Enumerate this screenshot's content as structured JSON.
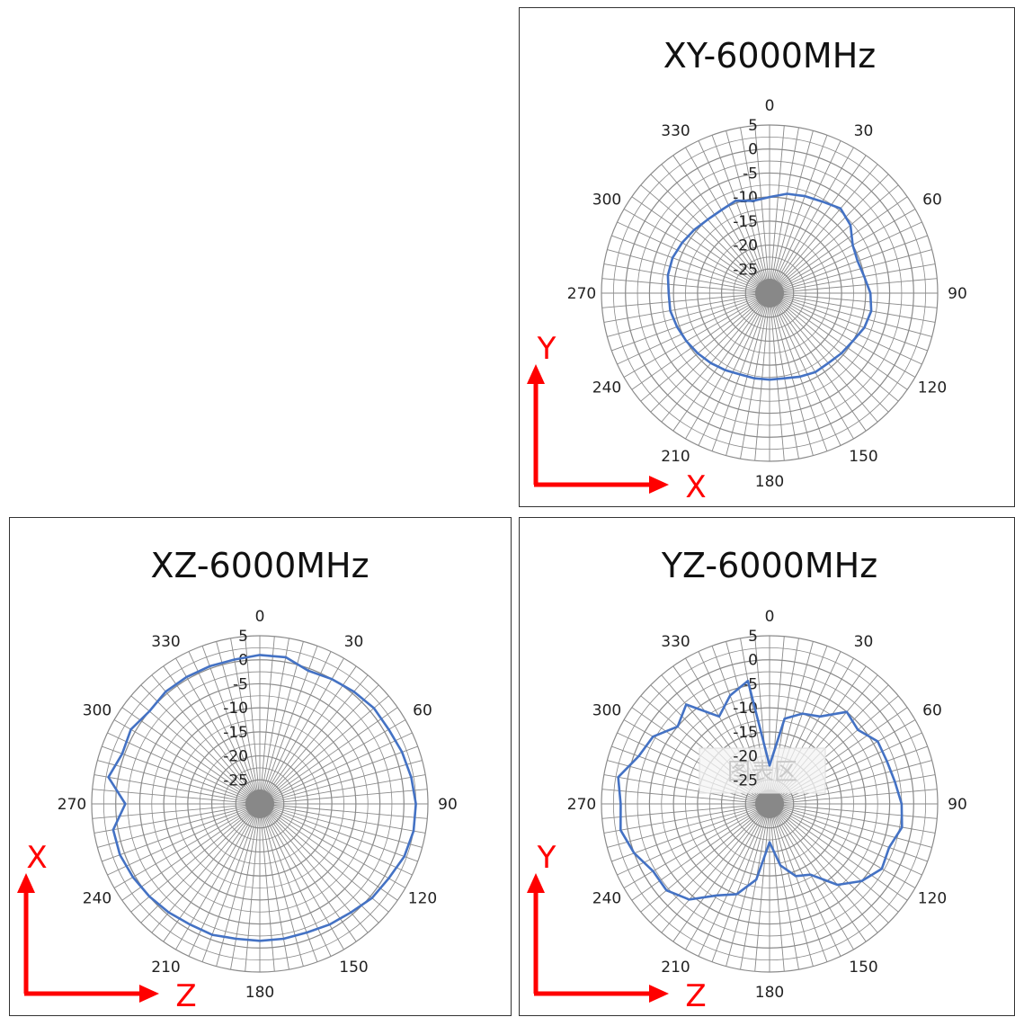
{
  "chart_data": [
    {
      "type": "polar-line",
      "title": "XY-6000MHz",
      "angle_ticks": [
        "0",
        "30",
        "60",
        "90",
        "120",
        "150",
        "180",
        "210",
        "240",
        "270",
        "300",
        "330"
      ],
      "radial_ticks": [
        "5",
        "0",
        "-5",
        "-10",
        "-15",
        "-20",
        "-25"
      ],
      "rlim": [
        -30,
        5
      ],
      "grid": true,
      "series_color": "#4472c4",
      "axes_indicator": {
        "vertical": "Y",
        "horizontal": "X"
      },
      "series": [
        {
          "name": "",
          "angles_deg": [
            0,
            10,
            20,
            30,
            40,
            50,
            60,
            70,
            80,
            90,
            100,
            110,
            120,
            130,
            140,
            150,
            160,
            170,
            180,
            190,
            200,
            210,
            220,
            230,
            240,
            250,
            260,
            270,
            280,
            290,
            300,
            310,
            320,
            330,
            340,
            350
          ],
          "values": [
            -10,
            -9,
            -8.5,
            -8,
            -7,
            -8,
            -10,
            -10.5,
            -10,
            -9,
            -8.5,
            -9,
            -10,
            -10.5,
            -11,
            -11,
            -11.5,
            -12,
            -12,
            -12,
            -12,
            -11.5,
            -11,
            -10.5,
            -10,
            -9.5,
            -9,
            -9,
            -8.5,
            -8.5,
            -9,
            -9.5,
            -10,
            -10,
            -9.5,
            -10.5
          ]
        }
      ]
    },
    {
      "type": "polar-line",
      "title": "XZ-6000MHz",
      "angle_ticks": [
        "0",
        "30",
        "60",
        "90",
        "120",
        "150",
        "180",
        "210",
        "240",
        "270",
        "300",
        "330"
      ],
      "radial_ticks": [
        "5",
        "0",
        "-5",
        "-10",
        "-15",
        "-20",
        "-25"
      ],
      "rlim": [
        -30,
        5
      ],
      "grid": true,
      "series_color": "#4472c4",
      "axes_indicator": {
        "vertical": "X",
        "horizontal": "Z"
      },
      "series": [
        {
          "name": "",
          "angles_deg": [
            0,
            10,
            20,
            30,
            40,
            50,
            60,
            70,
            80,
            90,
            100,
            110,
            120,
            130,
            140,
            150,
            160,
            170,
            180,
            190,
            200,
            210,
            220,
            230,
            240,
            250,
            260,
            270,
            280,
            290,
            300,
            310,
            320,
            330,
            340,
            350
          ],
          "values": [
            1,
            1,
            -0.5,
            0,
            0.5,
            1,
            1,
            1.5,
            2,
            2.5,
            2.5,
            2,
            1,
            0.5,
            -0.5,
            -1,
            -1.5,
            -1.5,
            -1.5,
            -1.5,
            -1,
            -1,
            -0.5,
            0,
            0.5,
            1,
            1,
            -2,
            2,
            0.5,
            1,
            0,
            0.5,
            0.5,
            0.5,
            0.5
          ]
        }
      ]
    },
    {
      "type": "polar-line",
      "title": "YZ-6000MHz",
      "angle_ticks": [
        "0",
        "30",
        "60",
        "90",
        "120",
        "150",
        "180",
        "210",
        "240",
        "270",
        "300",
        "330"
      ],
      "radial_ticks": [
        "5",
        "0",
        "-5",
        "-10",
        "-15",
        "-20",
        "-25"
      ],
      "rlim": [
        -30,
        5
      ],
      "grid": true,
      "series_color": "#4472c4",
      "axes_indicator": {
        "vertical": "Y",
        "horizontal": "Z"
      },
      "series": [
        {
          "name": "",
          "angles_deg": [
            0,
            10,
            20,
            30,
            40,
            50,
            60,
            70,
            80,
            90,
            100,
            110,
            120,
            130,
            140,
            150,
            160,
            170,
            180,
            190,
            200,
            210,
            220,
            230,
            240,
            250,
            260,
            270,
            280,
            290,
            300,
            310,
            320,
            330,
            340,
            350
          ],
          "values": [
            -22,
            -12,
            -10,
            -9,
            -5,
            -6,
            -4,
            -4,
            -3.5,
            -2.5,
            -2,
            -3.5,
            -3,
            -5,
            -8,
            -13,
            -14,
            -17,
            -22,
            -14,
            -10,
            -8,
            -4,
            -2,
            -2,
            0,
            1.5,
            1,
            2,
            -1,
            -2,
            -5,
            -3,
            -9,
            -6,
            -4
          ]
        }
      ]
    }
  ],
  "watermark": "图表区"
}
